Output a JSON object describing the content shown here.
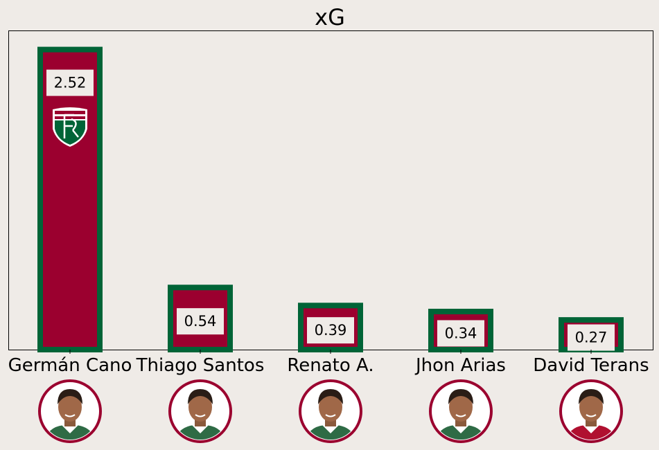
{
  "chart_data": {
    "type": "bar",
    "title": "xG",
    "categories": [
      "Germán Cano",
      "Thiago Santos",
      "Renato A.",
      "Jhon Arias",
      "David Terans"
    ],
    "values": [
      2.52,
      0.54,
      0.39,
      0.34,
      0.27
    ],
    "value_labels": [
      "2.52",
      "0.54",
      "0.39",
      "0.34",
      "0.27"
    ],
    "xlabel": "",
    "ylabel": "",
    "ylim": [
      0,
      2.65
    ],
    "grid": false,
    "legend": "none",
    "colors": {
      "bar_fill": "#9b002f",
      "bar_edge": "#006437",
      "background": "#efebe7",
      "label_box": "#efebe7",
      "avatar_ring": "#9b002f"
    },
    "annotations": [
      "club-crest-icon on top bar",
      "player avatar below each category"
    ]
  }
}
